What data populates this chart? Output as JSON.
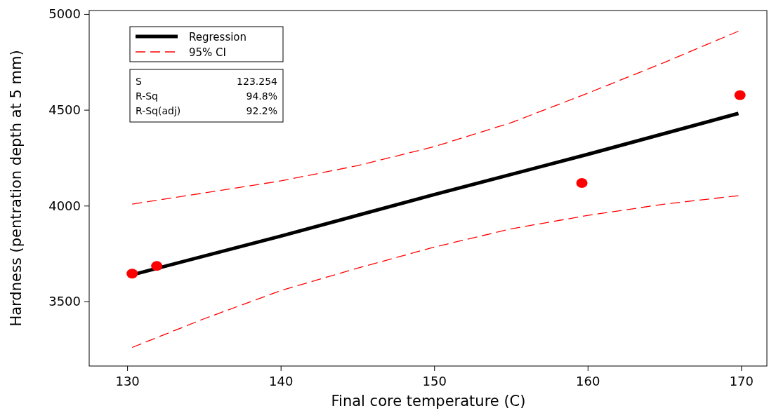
{
  "chart_data": {
    "type": "line",
    "xlabel": "Final core temperature (C)",
    "ylabel": "Hardness (pentration depth at 5 mm)",
    "xlim": [
      127.5,
      171.7
    ],
    "ylim": [
      3165,
      5020
    ],
    "xticks": [
      130,
      140,
      150,
      160,
      170
    ],
    "yticks": [
      3500,
      4000,
      4500,
      5000
    ],
    "grid": false,
    "legend": "top left",
    "series": [
      {
        "name": "Regression",
        "color": "#000000",
        "line_style": "solid",
        "marker": "none",
        "x": [
          130.4,
          140,
          150,
          160,
          169.8
        ],
        "values": [
          3643,
          3843,
          4060,
          4270,
          4483
        ]
      },
      {
        "name": "95% CI",
        "color": "#ff0000",
        "line_style": "dashed",
        "marker": "none",
        "x": [
          130.3,
          135,
          140,
          145,
          150,
          155,
          160,
          165,
          169.8
        ],
        "values": [
          4010,
          4068,
          4131,
          4211,
          4310,
          4435,
          4589,
          4750,
          4912
        ]
      },
      {
        "color": "#ff0000",
        "line_style": "dashed",
        "marker": "none",
        "x": [
          130.3,
          135,
          140,
          145,
          150,
          155,
          160,
          165,
          169.8
        ],
        "values": [
          3262,
          3412,
          3559,
          3676,
          3786,
          3881,
          3951,
          4010,
          4054
        ]
      },
      {
        "type": "scatter",
        "color": "#ff0000",
        "marker": "circle",
        "x": [
          130.3,
          131.9,
          159.6,
          169.9
        ],
        "values": [
          3647,
          3687,
          4120,
          4578
        ]
      }
    ],
    "annotations": [
      "S 123.254",
      "R-Sq 94.8%",
      "R-Sq(adj) 92.2%"
    ]
  }
}
